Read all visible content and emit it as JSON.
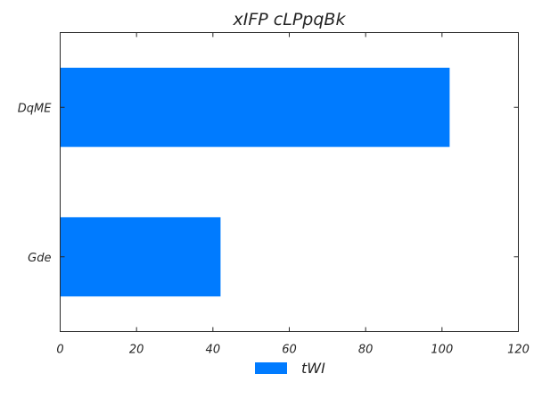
{
  "chart_data": {
    "type": "bar",
    "orientation": "horizontal",
    "title": "xIFP cLPpqBk",
    "xlabel": "",
    "ylabel": "",
    "categories": [
      "DqME",
      "Gde"
    ],
    "series": [
      {
        "name": "tWI",
        "values": [
          102,
          42
        ],
        "color": "#007bff"
      }
    ],
    "xlim": [
      0,
      120
    ],
    "xticks": [
      0,
      20,
      40,
      60,
      80,
      100,
      120
    ],
    "grid": false,
    "legend": "bottom-center"
  }
}
